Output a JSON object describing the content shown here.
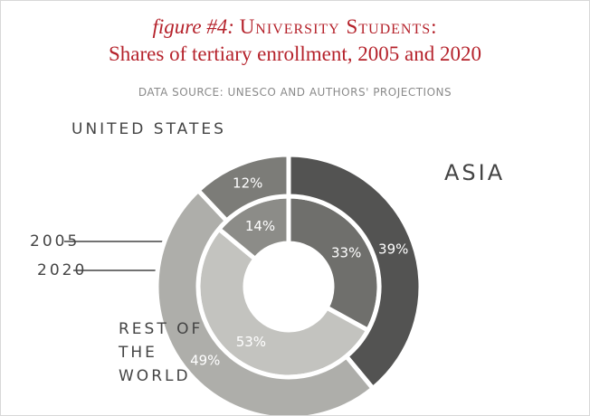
{
  "chart_data": {
    "type": "donut",
    "figure_label": "figure #4:",
    "title": "University Students:",
    "subtitle": "Shares of tertiary enrollment, 2005 and 2020",
    "source": "DATA SOURCE: UNESCO AND AUTHORS' PROJECTIONS",
    "categories": [
      "ASIA",
      "REST OF THE WORLD",
      "UNITED STATES"
    ],
    "series": [
      {
        "name": "2005",
        "values": [
          33,
          53,
          14
        ],
        "value_labels": [
          "33%",
          "53%",
          "14%"
        ],
        "colors": [
          "#6f6f6c",
          "#c3c3bf",
          "#8c8c88"
        ]
      },
      {
        "name": "2020",
        "values": [
          39,
          49,
          12
        ],
        "value_labels": [
          "39%",
          "49%",
          "12%"
        ],
        "colors": [
          "#535352",
          "#aeaeaa",
          "#7c7c78"
        ]
      }
    ]
  }
}
